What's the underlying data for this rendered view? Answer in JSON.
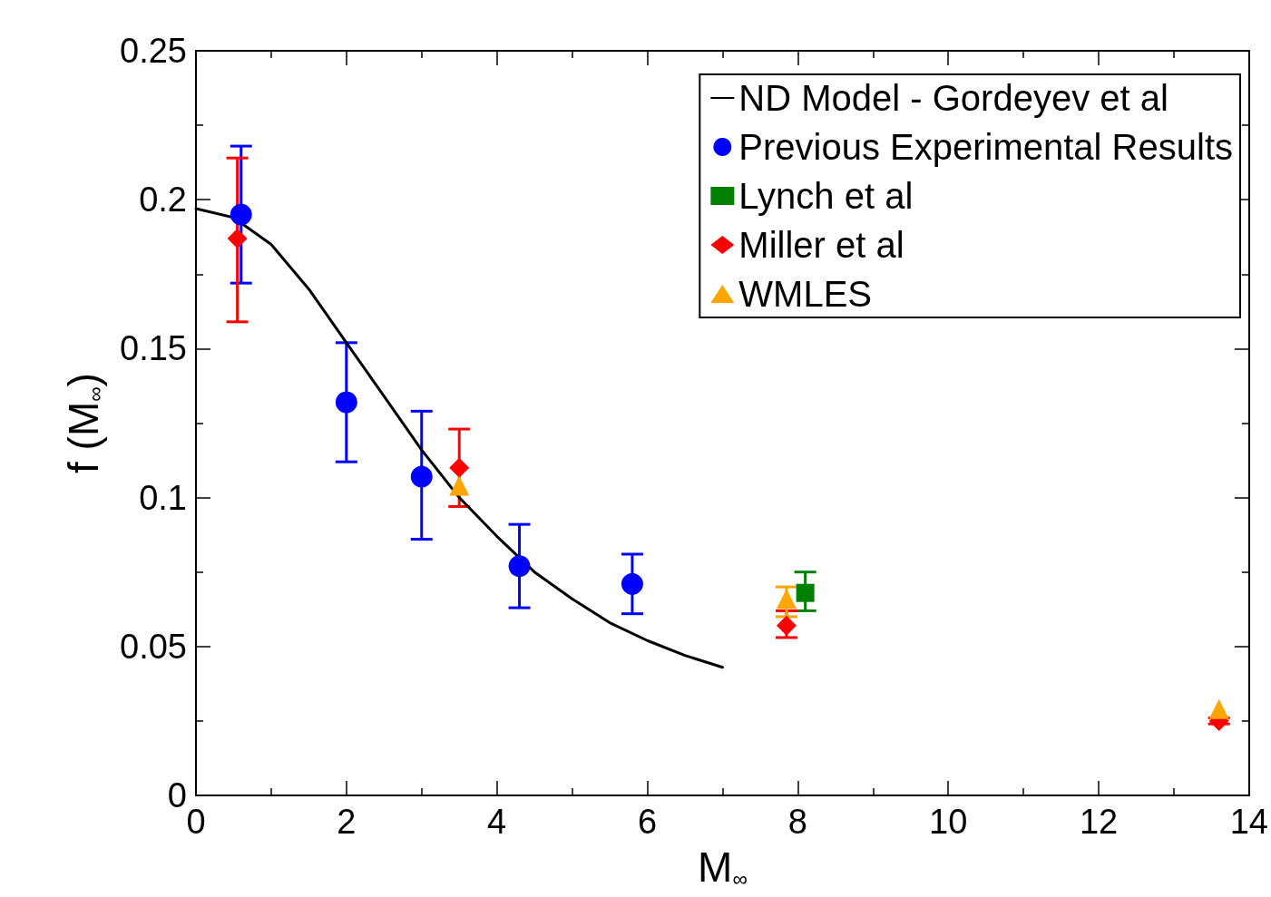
{
  "chart_data": {
    "type": "scatter",
    "xlabel": "M$_{∞}$",
    "ylabel": "f (M$_{∞}$)",
    "xlim": [
      0,
      14
    ],
    "xticks": [
      0,
      2,
      4,
      6,
      8,
      10,
      12,
      14
    ],
    "ylim": [
      0,
      0.25
    ],
    "yticks": [
      0,
      0.05,
      0.1,
      0.15,
      0.2,
      0.25
    ],
    "grid": false,
    "legend": "top right",
    "series": [
      {
        "name": "ND Model - Gordeyev et al",
        "type": "line",
        "color": "#000000",
        "marker": "none",
        "line_style": "solid",
        "x": [
          0,
          0.5,
          1,
          1.5,
          2,
          2.5,
          3,
          3.5,
          4,
          4.5,
          5,
          5.5,
          6,
          6.5,
          7
        ],
        "values": [
          0.197,
          0.194,
          0.185,
          0.17,
          0.152,
          0.134,
          0.116,
          0.1,
          0.087,
          0.075,
          0.066,
          0.058,
          0.052,
          0.047,
          0.043
        ]
      },
      {
        "name": "Previous Experimental Results",
        "color": "#0000ff",
        "marker": "circle",
        "x": [
          0.6,
          2,
          3,
          4.3,
          5.8
        ],
        "values": [
          0.195,
          0.132,
          0.107,
          0.077,
          0.071
        ],
        "errors": [
          [
            0.172,
            0.218
          ],
          [
            0.112,
            0.152
          ],
          [
            0.086,
            0.129
          ],
          [
            0.063,
            0.091
          ],
          [
            0.061,
            0.081
          ]
        ]
      },
      {
        "name": "Lynch et al",
        "color": "#008000",
        "marker": "square",
        "x": [
          8.1
        ],
        "values": [
          0.068
        ],
        "errors": [
          [
            0.062,
            0.075
          ]
        ]
      },
      {
        "name": "Miller et al",
        "color": "#ff0000",
        "marker": "diamond",
        "x": [
          0.55,
          3.5,
          7.85,
          13.6
        ],
        "values": [
          0.187,
          0.11,
          0.057,
          0.025
        ],
        "errors": [
          [
            0.159,
            0.214
          ],
          [
            0.097,
            0.123
          ],
          [
            0.053,
            0.062
          ],
          [
            0.024,
            0.026
          ]
        ]
      },
      {
        "name": "WMLES",
        "color": "#ffa500",
        "marker": "triangle",
        "x": [
          3.5,
          7.85,
          13.6
        ],
        "values": [
          0.104,
          0.066,
          0.029
        ],
        "errors": [
          null,
          [
            0.06,
            0.07
          ],
          null
        ]
      }
    ]
  }
}
